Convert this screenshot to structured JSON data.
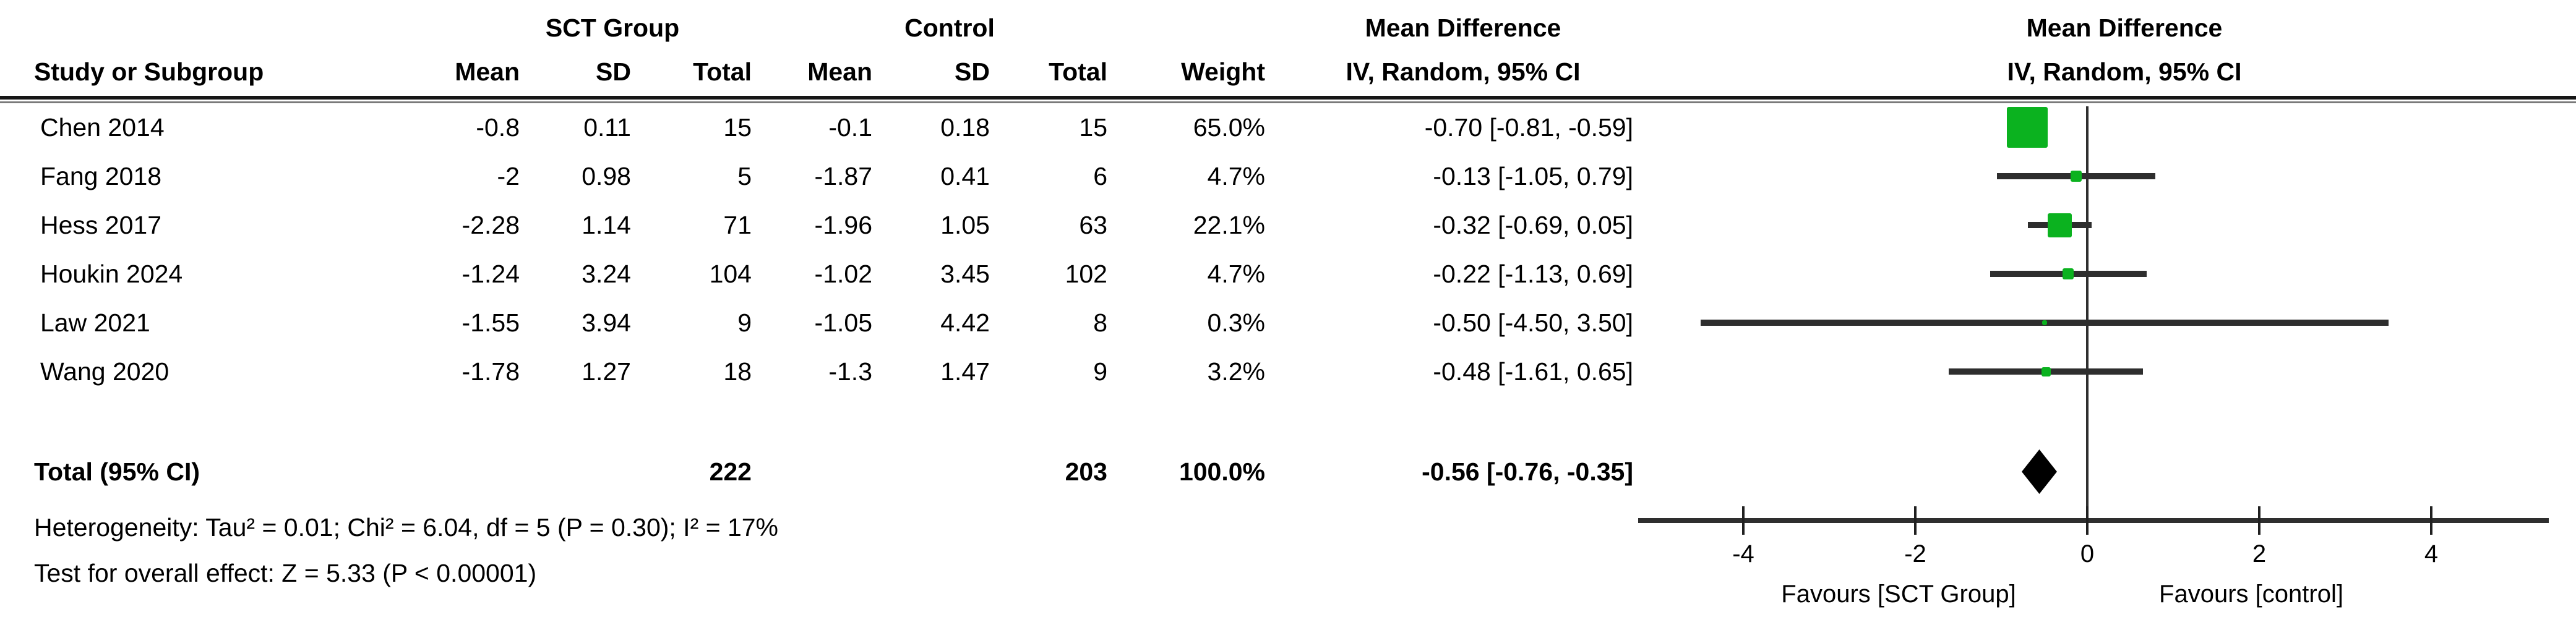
{
  "table": {
    "group_headers": {
      "sct": "SCT Group",
      "control": "Control",
      "md_left_line1": "Mean Difference",
      "md_left_line2": "IV, Random, 95% CI",
      "md_right_line1": "Mean Difference",
      "md_right_line2": "IV, Random, 95% CI"
    },
    "col_headers": {
      "study": "Study or Subgroup",
      "sct_mean": "Mean",
      "sct_sd": "SD",
      "sct_total": "Total",
      "ctrl_mean": "Mean",
      "ctrl_sd": "SD",
      "ctrl_total": "Total",
      "weight": "Weight"
    },
    "rows": [
      {
        "study": "Chen 2014",
        "sct_mean": "-0.8",
        "sct_sd": "0.11",
        "sct_total": "15",
        "ctrl_mean": "-0.1",
        "ctrl_sd": "0.18",
        "ctrl_total": "15",
        "weight": "65.0%",
        "ci_text": "-0.70 [-0.81, -0.59]"
      },
      {
        "study": "Fang 2018",
        "sct_mean": "-2",
        "sct_sd": "0.98",
        "sct_total": "5",
        "ctrl_mean": "-1.87",
        "ctrl_sd": "0.41",
        "ctrl_total": "6",
        "weight": "4.7%",
        "ci_text": "-0.13 [-1.05, 0.79]"
      },
      {
        "study": "Hess 2017",
        "sct_mean": "-2.28",
        "sct_sd": "1.14",
        "sct_total": "71",
        "ctrl_mean": "-1.96",
        "ctrl_sd": "1.05",
        "ctrl_total": "63",
        "weight": "22.1%",
        "ci_text": "-0.32 [-0.69, 0.05]"
      },
      {
        "study": "Houkin 2024",
        "sct_mean": "-1.24",
        "sct_sd": "3.24",
        "sct_total": "104",
        "ctrl_mean": "-1.02",
        "ctrl_sd": "3.45",
        "ctrl_total": "102",
        "weight": "4.7%",
        "ci_text": "-0.22 [-1.13, 0.69]"
      },
      {
        "study": "Law 2021",
        "sct_mean": "-1.55",
        "sct_sd": "3.94",
        "sct_total": "9",
        "ctrl_mean": "-1.05",
        "ctrl_sd": "4.42",
        "ctrl_total": "8",
        "weight": "0.3%",
        "ci_text": "-0.50 [-4.50, 3.50]"
      },
      {
        "study": "Wang 2020",
        "sct_mean": "-1.78",
        "sct_sd": "1.27",
        "sct_total": "18",
        "ctrl_mean": "-1.3",
        "ctrl_sd": "1.47",
        "ctrl_total": "9",
        "weight": "3.2%",
        "ci_text": "-0.48 [-1.61, 0.65]"
      }
    ],
    "total_row": {
      "label": "Total (95% CI)",
      "sct_total": "222",
      "ctrl_total": "203",
      "weight": "100.0%",
      "ci_text": "-0.56 [-0.76, -0.35]"
    },
    "footer": {
      "heterogeneity": "Heterogeneity: Tau² = 0.01; Chi² = 6.04, df = 5 (P = 0.30); I² = 17%",
      "overall_effect": "Test for overall effect: Z = 5.33 (P < 0.00001)"
    }
  },
  "chart_data": {
    "type": "scatter",
    "chart_kind": "forest_plot",
    "title": "Mean Difference",
    "effect_measure": "IV, Random, 95% CI",
    "studies": [
      {
        "name": "Chen 2014",
        "effect": -0.7,
        "ci_low": -0.81,
        "ci_high": -0.59,
        "weight_pct": 65.0
      },
      {
        "name": "Fang 2018",
        "effect": -0.13,
        "ci_low": -1.05,
        "ci_high": 0.79,
        "weight_pct": 4.7
      },
      {
        "name": "Hess 2017",
        "effect": -0.32,
        "ci_low": -0.69,
        "ci_high": 0.05,
        "weight_pct": 22.1
      },
      {
        "name": "Houkin 2024",
        "effect": -0.22,
        "ci_low": -1.13,
        "ci_high": 0.69,
        "weight_pct": 4.7
      },
      {
        "name": "Law 2021",
        "effect": -0.5,
        "ci_low": -4.5,
        "ci_high": 3.5,
        "weight_pct": 0.3
      },
      {
        "name": "Wang 2020",
        "effect": -0.48,
        "ci_low": -1.61,
        "ci_high": 0.65,
        "weight_pct": 3.2
      }
    ],
    "total": {
      "label": "Total (95% CI)",
      "effect": -0.56,
      "ci_low": -0.76,
      "ci_high": -0.35
    },
    "axis": {
      "ticks": [
        -4,
        -2,
        0,
        2,
        4
      ],
      "xmin": -5.2,
      "xmax": 5.4,
      "favours_left": "Favours [SCT Group]",
      "favours_right": "Favours [control]"
    },
    "colors": {
      "marker_green": "#0bb21f",
      "ci_line": "#2e2e2e",
      "diamond": "#000000"
    }
  }
}
